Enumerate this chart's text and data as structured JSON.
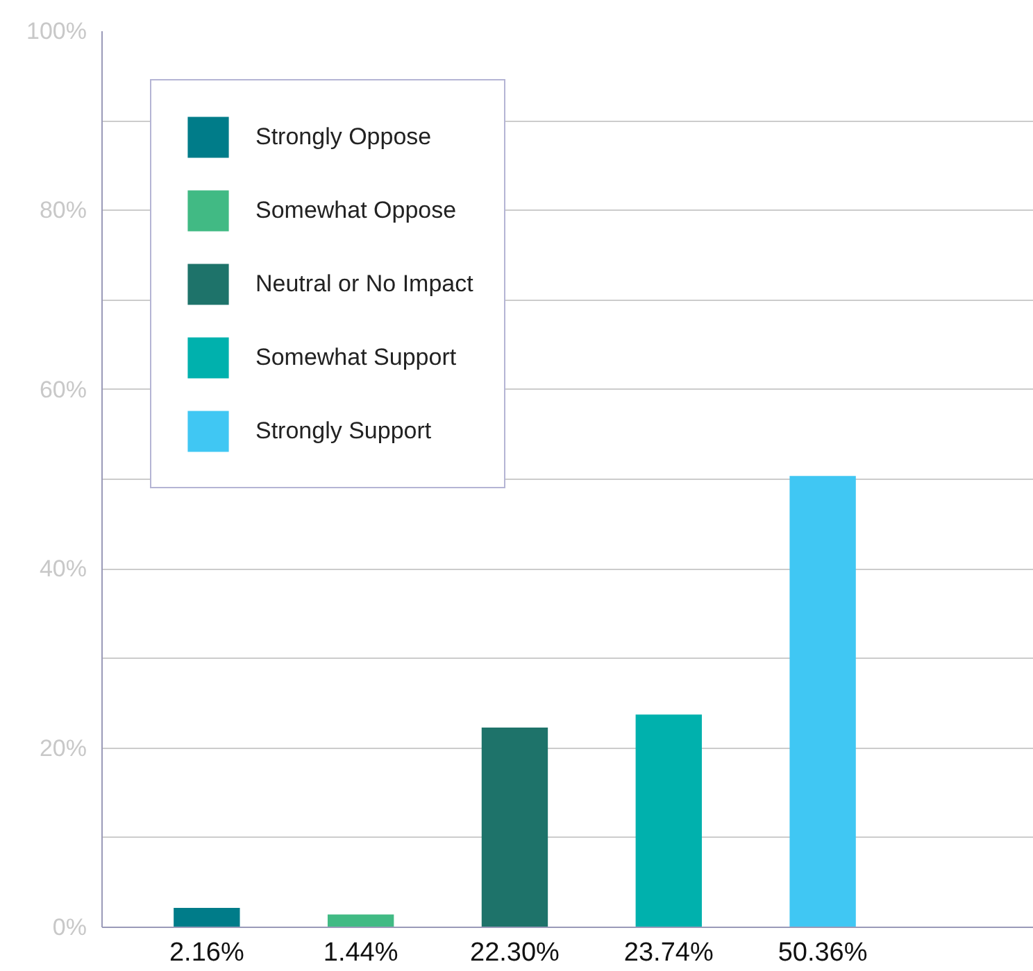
{
  "chart_data": {
    "type": "bar",
    "stacked": true,
    "categories": [
      "2.16%",
      "1.44%",
      "22.30%",
      "23.74%",
      "50.36%"
    ],
    "series": [
      {
        "name": "Strongly Oppose",
        "color": "#007c89",
        "values": [
          2.16,
          null,
          null,
          null,
          null
        ]
      },
      {
        "name": "Somewhat Oppose",
        "color": "#41ba84",
        "values": [
          null,
          1.44,
          null,
          null,
          null
        ]
      },
      {
        "name": "Neutral or No Impact",
        "color": "#1e736a",
        "values": [
          null,
          null,
          22.3,
          null,
          null
        ]
      },
      {
        "name": "Somewhat Support",
        "color": "#00b1ad",
        "values": [
          null,
          null,
          null,
          23.74,
          null
        ]
      },
      {
        "name": "Strongly Support",
        "color": "#40c7f3",
        "values": [
          null,
          null,
          null,
          null,
          50.36
        ]
      }
    ],
    "ylim": [
      0,
      100
    ],
    "yticks": [
      {
        "value": 0,
        "label": "0%"
      },
      {
        "value": 10,
        "label": null
      },
      {
        "value": 20,
        "label": "20%"
      },
      {
        "value": 30,
        "label": null
      },
      {
        "value": 40,
        "label": "40%"
      },
      {
        "value": 50,
        "label": null
      },
      {
        "value": 60,
        "label": "60%"
      },
      {
        "value": 70,
        "label": null
      },
      {
        "value": 80,
        "label": "80%"
      },
      {
        "value": 90,
        "label": null
      },
      {
        "value": 100,
        "label": "100%"
      }
    ],
    "grid": "y",
    "legend": "top left"
  }
}
